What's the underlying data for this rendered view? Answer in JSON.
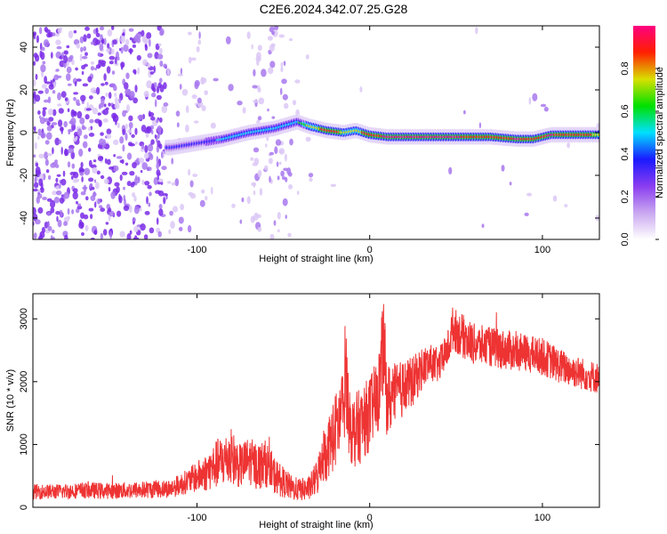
{
  "page": {
    "title": "C2E6.2024.342.07.25.G28"
  },
  "chart_data": [
    {
      "type": "heatmap",
      "xlabel": "Height of straight line (km)",
      "ylabel": "Frequency (Hz)",
      "xlim": [
        -195,
        133
      ],
      "ylim": [
        -50,
        50
      ],
      "xticks": [
        -100,
        0,
        100
      ],
      "yticks": [
        40,
        20,
        0,
        -20,
        -40
      ],
      "colorbar": {
        "label": "Normalized spectral amplitude",
        "range": [
          0,
          1
        ],
        "ticks": [
          0,
          0.2,
          0.4,
          0.6,
          0.8
        ],
        "colors": [
          "#ffffff",
          "#c9a7f0",
          "#8a3df0",
          "#1a1aff",
          "#00e0ff",
          "#00e000",
          "#d8e000",
          "#ff2000",
          "#ff0080"
        ]
      },
      "ridge": {
        "x": [
          -115,
          -100,
          -85,
          -70,
          -55,
          -42,
          -35,
          -25,
          -15,
          -8,
          0,
          10,
          30,
          50,
          70,
          85,
          95,
          105,
          115,
          133
        ],
        "y": [
          -7,
          -5,
          -3,
          0,
          2,
          5,
          3,
          1,
          0,
          1,
          -1,
          -2,
          -2,
          -2,
          -2,
          -3,
          -3,
          -1,
          -1,
          -1
        ],
        "amplitude": [
          0.35,
          0.4,
          0.45,
          0.5,
          0.45,
          0.55,
          0.75,
          0.85,
          0.8,
          0.75,
          0.9,
          0.95,
          0.95,
          0.95,
          0.85,
          0.95,
          0.9,
          0.95,
          0.85,
          0.8
        ]
      }
    },
    {
      "type": "line",
      "xlabel": "Height of straight line (km)",
      "ylabel": "SNR (10 * v/v)",
      "xlim": [
        -195,
        133
      ],
      "ylim": [
        0,
        3400
      ],
      "xticks": [
        -100,
        0,
        100
      ],
      "yticks": [
        0,
        1000,
        2000,
        3000
      ],
      "series": [
        {
          "color": "#ee3333",
          "x": [
            -195,
            -180,
            -165,
            -150,
            -130,
            -115,
            -105,
            -95,
            -88,
            -80,
            -75,
            -70,
            -65,
            -60,
            -55,
            -50,
            -45,
            -40,
            -35,
            -30,
            -28,
            -25,
            -20,
            -15,
            -14,
            -12,
            -10,
            -5,
            0,
            5,
            8,
            10,
            15,
            20,
            25,
            30,
            35,
            40,
            45,
            48,
            55,
            60,
            70,
            80,
            90,
            100,
            110,
            120,
            133
          ],
          "y": [
            250,
            250,
            270,
            260,
            280,
            300,
            420,
            550,
            700,
            800,
            650,
            750,
            650,
            700,
            500,
            400,
            300,
            280,
            300,
            500,
            800,
            900,
            1200,
            1600,
            2300,
            1400,
            1200,
            1300,
            1500,
            1800,
            2600,
            1700,
            1800,
            1900,
            2000,
            2200,
            2300,
            2250,
            2500,
            2850,
            2700,
            2600,
            2550,
            2500,
            2450,
            2400,
            2250,
            2150,
            2050
          ],
          "noise": [
            120,
            120,
            130,
            130,
            140,
            150,
            200,
            300,
            400,
            450,
            350,
            380,
            380,
            380,
            300,
            250,
            200,
            180,
            200,
            300,
            400,
            500,
            600,
            700,
            900,
            600,
            600,
            600,
            600,
            600,
            800,
            600,
            500,
            450,
            400,
            350,
            300,
            280,
            300,
            350,
            350,
            330,
            320,
            320,
            300,
            300,
            280,
            260,
            250
          ]
        }
      ]
    }
  ]
}
